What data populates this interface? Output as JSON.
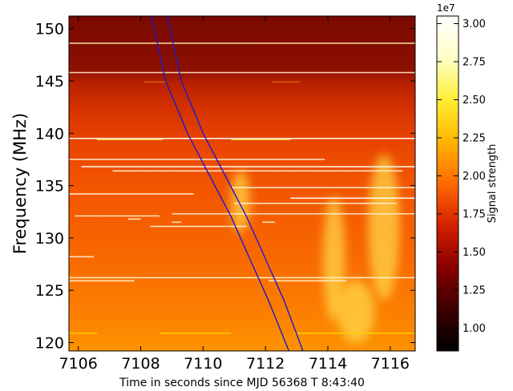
{
  "chart_data": {
    "type": "heatmap",
    "xlabel": "Time in seconds since MJD 56368 T 8:43:40",
    "ylabel": "Frequency (MHz)",
    "xlim": [
      7105.7,
      7116.8
    ],
    "ylim": [
      119.2,
      151.2
    ],
    "x_ticks": [
      "7106",
      "7108",
      "7110",
      "7112",
      "7114",
      "7116"
    ],
    "x_tick_values": [
      7106,
      7108,
      7110,
      7112,
      7114,
      7116
    ],
    "y_ticks": [
      "120",
      "125",
      "130",
      "135",
      "140",
      "145",
      "150"
    ],
    "y_tick_values": [
      120,
      125,
      130,
      135,
      140,
      145,
      150
    ],
    "colorbar": {
      "label": "Signal strength",
      "multiplier": "1e7",
      "range": [
        0.85,
        3.05
      ],
      "ticks": [
        "1.00",
        "1.25",
        "1.50",
        "1.75",
        "2.00",
        "2.25",
        "2.50",
        "2.75",
        "3.00"
      ],
      "tick_values": [
        1.0,
        1.25,
        1.5,
        1.75,
        2.0,
        2.25,
        2.5,
        2.75,
        3.0
      ]
    },
    "colormap": [
      "#000000",
      "#3d0000",
      "#8a0000",
      "#d42000",
      "#ff6a00",
      "#ffb400",
      "#ffee33",
      "#ffffc8",
      "#ffffff"
    ],
    "dispersion_curves": {
      "color": "#1a1acd",
      "curve_1": [
        [
          7108.35,
          151.2
        ],
        [
          7108.8,
          145
        ],
        [
          7109.5,
          140
        ],
        [
          7110.2,
          136
        ],
        [
          7110.9,
          132
        ],
        [
          7111.5,
          128
        ],
        [
          7112.1,
          124
        ],
        [
          7112.75,
          119.2
        ]
      ],
      "curve_2": [
        [
          7108.85,
          151.2
        ],
        [
          7109.3,
          145
        ],
        [
          7110.0,
          140
        ],
        [
          7110.7,
          136
        ],
        [
          7111.4,
          132
        ],
        [
          7112.0,
          128
        ],
        [
          7112.6,
          124
        ],
        [
          7113.2,
          119.2
        ]
      ]
    },
    "horizontal_features": [
      {
        "y": 148.6,
        "x0": 7105.7,
        "x1": 7116.8,
        "color": "#ffe9a0"
      },
      {
        "y": 145.8,
        "x0": 7105.7,
        "x1": 7116.8,
        "color": "#ffe0c0"
      },
      {
        "y": 144.9,
        "x0": 7108.1,
        "x1": 7108.8,
        "color": "#e06000"
      },
      {
        "y": 144.9,
        "x0": 7112.2,
        "x1": 7113.1,
        "color": "#e06000"
      },
      {
        "y": 139.5,
        "x0": 7105.7,
        "x1": 7116.8,
        "color": "#ffffff"
      },
      {
        "y": 139.4,
        "x0": 7106.6,
        "x1": 7108.7,
        "color": "#ffe040"
      },
      {
        "y": 139.4,
        "x0": 7110.9,
        "x1": 7112.8,
        "color": "#ffe040"
      },
      {
        "y": 137.5,
        "x0": 7105.7,
        "x1": 7113.9,
        "color": "#ffe9c8"
      },
      {
        "y": 136.8,
        "x0": 7106.1,
        "x1": 7116.8,
        "color": "#ffffff"
      },
      {
        "y": 136.4,
        "x0": 7107.1,
        "x1": 7116.4,
        "color": "#fff0d0"
      },
      {
        "y": 134.8,
        "x0": 7110.9,
        "x1": 7116.8,
        "color": "#fff0d0"
      },
      {
        "y": 134.2,
        "x0": 7105.7,
        "x1": 7109.7,
        "color": "#fff0d0"
      },
      {
        "y": 133.8,
        "x0": 7112.8,
        "x1": 7116.8,
        "color": "#ffffff"
      },
      {
        "y": 133.3,
        "x0": 7111.0,
        "x1": 7116.2,
        "color": "#fff0d0"
      },
      {
        "y": 132.3,
        "x0": 7109.0,
        "x1": 7116.8,
        "color": "#fff0d0"
      },
      {
        "y": 132.1,
        "x0": 7105.9,
        "x1": 7108.6,
        "color": "#fff0d0"
      },
      {
        "y": 131.8,
        "x0": 7107.6,
        "x1": 7108.0,
        "color": "#fff0d0"
      },
      {
        "y": 131.5,
        "x0": 7109.0,
        "x1": 7109.3,
        "color": "#fff0d0"
      },
      {
        "y": 131.5,
        "x0": 7111.9,
        "x1": 7112.3,
        "color": "#fff0d0"
      },
      {
        "y": 131.1,
        "x0": 7108.3,
        "x1": 7111.4,
        "color": "#fff0d0"
      },
      {
        "y": 128.2,
        "x0": 7105.7,
        "x1": 7106.5,
        "color": "#fff0d0"
      },
      {
        "y": 126.2,
        "x0": 7105.7,
        "x1": 7116.8,
        "color": "#fff0d0"
      },
      {
        "y": 125.9,
        "x0": 7105.7,
        "x1": 7107.8,
        "color": "#fff0d0"
      },
      {
        "y": 125.9,
        "x0": 7112.1,
        "x1": 7114.6,
        "color": "#fff0d0"
      },
      {
        "y": 120.9,
        "x0": 7105.7,
        "x1": 7106.6,
        "color": "#ffd000"
      },
      {
        "y": 120.9,
        "x0": 7108.6,
        "x1": 7110.9,
        "color": "#ffd000"
      },
      {
        "y": 120.9,
        "x0": 7112.9,
        "x1": 7116.8,
        "color": "#ffd000"
      }
    ],
    "bright_patches": [
      {
        "x": 7111.2,
        "y": 133.5,
        "w": 0.6,
        "h": 6
      },
      {
        "x": 7114.2,
        "y": 128,
        "w": 0.7,
        "h": 12
      },
      {
        "x": 7115.8,
        "y": 131,
        "w": 1.0,
        "h": 14
      },
      {
        "x": 7114.9,
        "y": 123,
        "w": 1.2,
        "h": 6
      }
    ],
    "grid": false
  }
}
